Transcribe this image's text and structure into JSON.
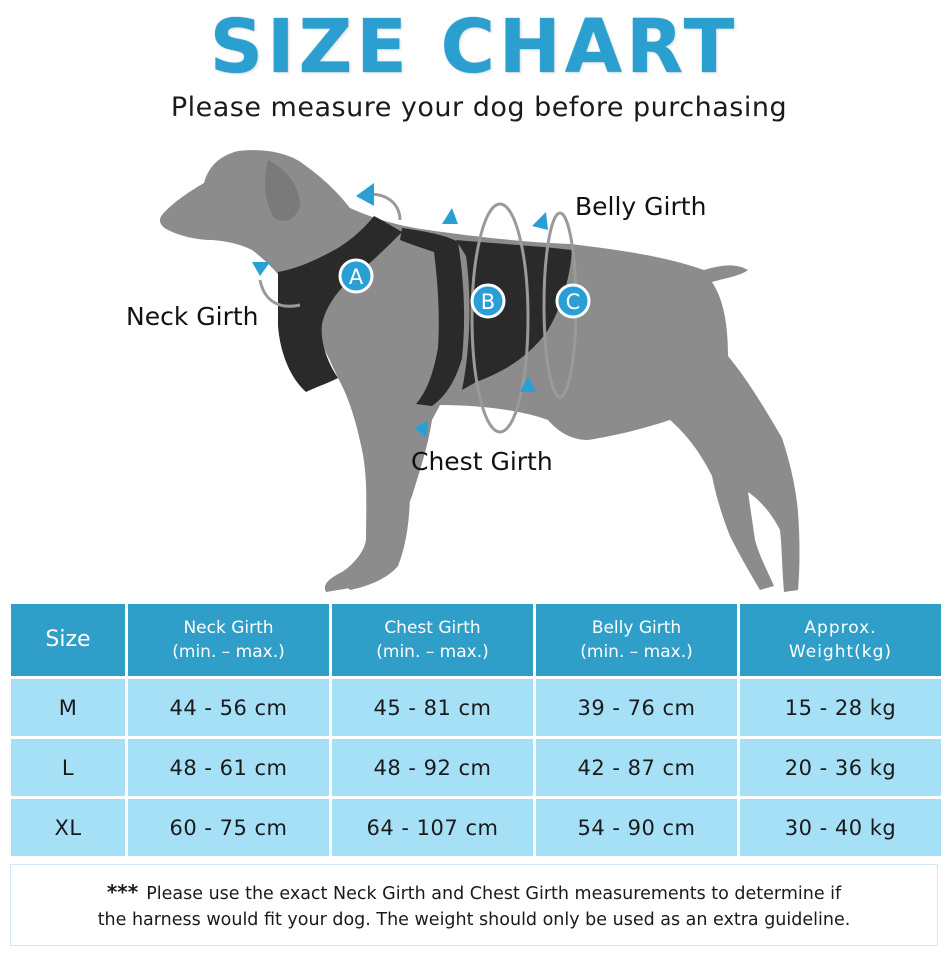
{
  "title": "SIZE CHART",
  "subtitle": "Please measure your dog before purchasing",
  "diagram": {
    "labels": {
      "neck": "Neck Girth",
      "belly": "Belly Girth",
      "chest": "Chest Girth"
    },
    "markers": [
      "A",
      "B",
      "C"
    ],
    "colors": {
      "dog": "#8c8c8c",
      "harness": "#2a2a2a",
      "marker": "#2a9fd6",
      "arrow": "#2a9fd6"
    }
  },
  "table": {
    "headers": [
      {
        "line1": "Size",
        "line2": ""
      },
      {
        "line1": "Neck Girth",
        "line2": "(min. – max.)"
      },
      {
        "line1": "Chest Girth",
        "line2": "(min. – max.)"
      },
      {
        "line1": "Belly Girth",
        "line2": "(min. – max.)"
      },
      {
        "line1": "Approx.",
        "line2": "Weight(kg)"
      }
    ],
    "rows": [
      [
        "M",
        "44 - 56 cm",
        "45 - 81 cm",
        "39 - 76 cm",
        "15 - 28 kg"
      ],
      [
        "L",
        "48 - 61 cm",
        "48 - 92 cm",
        "42 - 87 cm",
        "20 - 36 kg"
      ],
      [
        "XL",
        "60 - 75 cm",
        "64 - 107 cm",
        "54 - 90 cm",
        "30 - 40 kg"
      ]
    ],
    "colors": {
      "header": "#2f9fc9",
      "cell": "#a6e0f6"
    }
  },
  "note": {
    "stars": "***",
    "line1": "Please use the exact Neck Girth and Chest Girth measurements to determine if",
    "line2": "the harness would fit your dog. The weight should only be used as an extra guideline."
  }
}
